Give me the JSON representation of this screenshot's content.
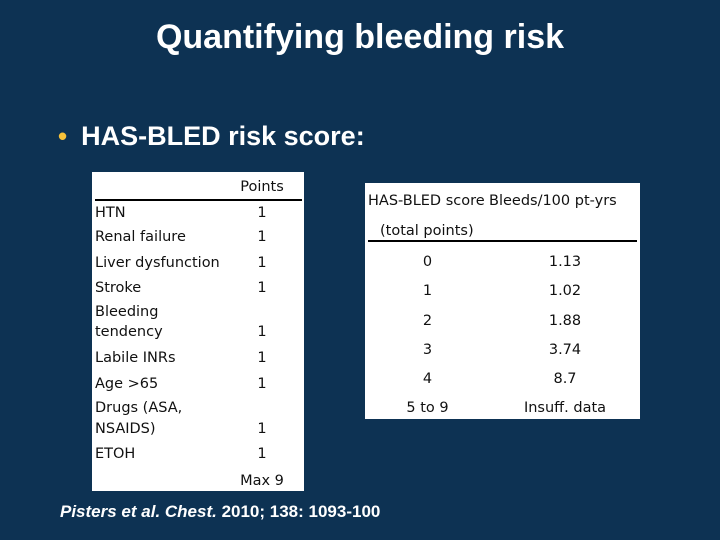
{
  "slide": {
    "title": "Quantifying bleeding risk",
    "bullet": "HAS-BLED risk score:"
  },
  "risk_factors": {
    "points_header": "Points",
    "rows": [
      {
        "factor": "HTN",
        "points": "1"
      },
      {
        "factor": "Renal failure",
        "points": "1"
      },
      {
        "factor": "Liver dysfunction",
        "points": "1"
      },
      {
        "factor": "Stroke",
        "points": "1"
      },
      {
        "factor": "Bleeding",
        "factor2": "tendency",
        "points": "1"
      },
      {
        "factor": "Labile INRs",
        "points": "1"
      },
      {
        "factor": "Age >65",
        "points": "1"
      },
      {
        "factor": "Drugs (ASA,",
        "factor2": "NSAIDS)",
        "points": "1"
      },
      {
        "factor": "ETOH",
        "points": "1"
      }
    ],
    "max_label": "Max 9"
  },
  "score_table": {
    "header_score": "HAS-BLED score",
    "header_score_sub": "(total points)",
    "header_bleeds": "Bleeds/100 pt-yrs",
    "rows": [
      {
        "score": "0",
        "bleeds": "1.13"
      },
      {
        "score": "1",
        "bleeds": "1.02"
      },
      {
        "score": "2",
        "bleeds": "1.88"
      },
      {
        "score": "3",
        "bleeds": "3.74"
      },
      {
        "score": "4",
        "bleeds": "8.7"
      },
      {
        "score": "5 to 9",
        "bleeds": "Insuff. data"
      }
    ]
  },
  "citation": {
    "italic": "Pisters et al. Chest.",
    "rest": " 2010; 138: 1093-100"
  },
  "colors": {
    "background": "#0d3253",
    "bullet": "#f7c23a",
    "panel": "#ffffff"
  }
}
